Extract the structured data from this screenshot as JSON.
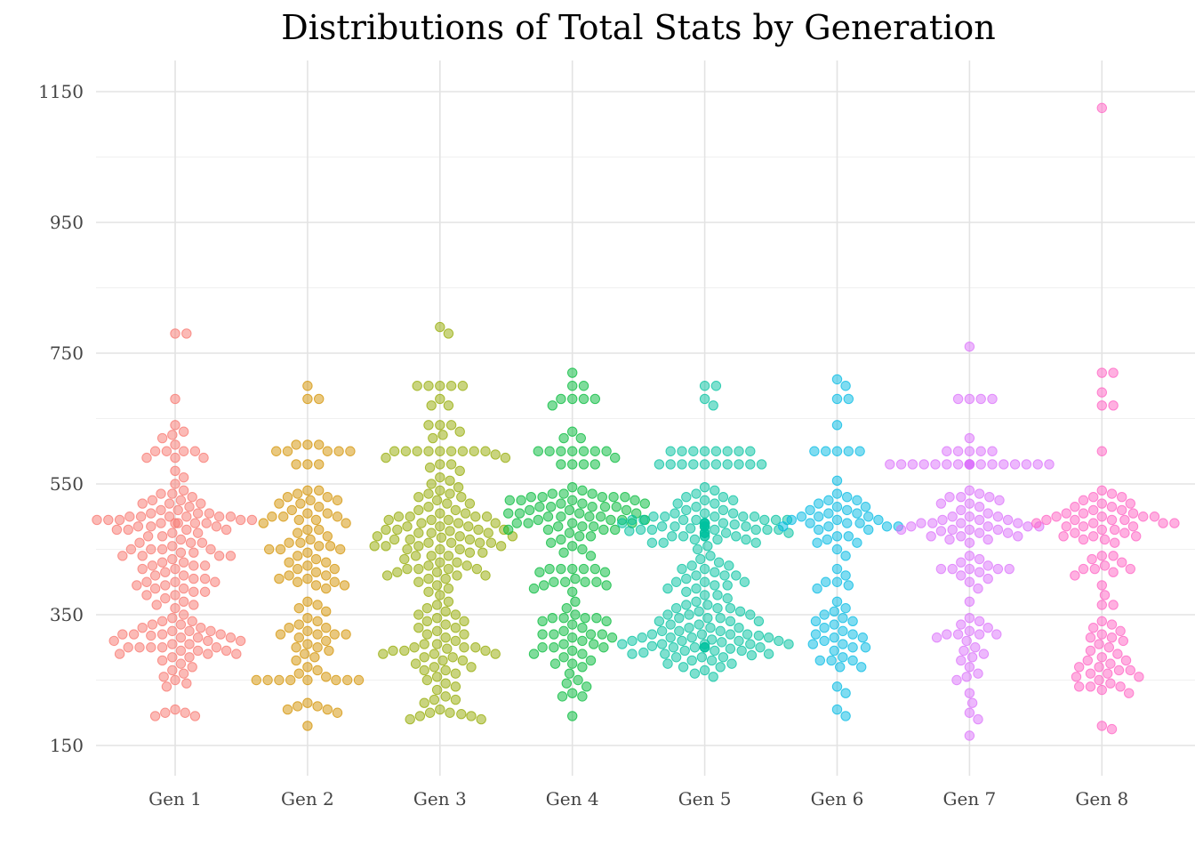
{
  "chart_data": {
    "type": "scatter",
    "subtype": "beeswarm",
    "title": "Distributions of Total Stats by Generation",
    "xlabel": "",
    "ylabel": "",
    "ylim": [
      100,
      1200
    ],
    "y_ticks": [
      "150",
      "350",
      "550",
      "750",
      "950",
      "1150"
    ],
    "y_tick_values": [
      150,
      350,
      550,
      750,
      950,
      1150
    ],
    "y_minor_values": [
      250,
      450,
      650,
      850,
      1050
    ],
    "categories": [
      "Gen 1",
      "Gen 2",
      "Gen 3",
      "Gen 4",
      "Gen 5",
      "Gen 6",
      "Gen 7",
      "Gen 8"
    ],
    "grid": true,
    "legend": "none",
    "point_opacity": 0.5,
    "series": [
      {
        "color": "#F8766D",
        "values": [
          780,
          780,
          680,
          640,
          630,
          625,
          620,
          610,
          600,
          600,
          600,
          600,
          590,
          590,
          590,
          570,
          560,
          550,
          540,
          535,
          535,
          530,
          525,
          525,
          520,
          520,
          520,
          515,
          510,
          510,
          505,
          505,
          505,
          500,
          500,
          500,
          500,
          500,
          500,
          495,
          495,
          495,
          495,
          495,
          490,
          490,
          490,
          490,
          490,
          485,
          485,
          485,
          480,
          480,
          480,
          480,
          475,
          475,
          470,
          470,
          465,
          460,
          460,
          460,
          455,
          450,
          450,
          450,
          450,
          445,
          445,
          440,
          440,
          440,
          440,
          435,
          430,
          430,
          425,
          425,
          425,
          420,
          420,
          415,
          410,
          410,
          405,
          405,
          400,
          400,
          400,
          395,
          395,
          390,
          390,
          385,
          385,
          380,
          380,
          375,
          370,
          365,
          365,
          360,
          350,
          345,
          340,
          340,
          335,
          335,
          330,
          330,
          325,
          325,
          325,
          320,
          320,
          320,
          320,
          318,
          315,
          315,
          315,
          310,
          310,
          310,
          305,
          305,
          300,
          300,
          300,
          300,
          300,
          295,
          295,
          295,
          290,
          290,
          290,
          285,
          285,
          280,
          275,
          270,
          265,
          260,
          255,
          250,
          245,
          240,
          205,
          200,
          200,
          195,
          195
        ]
      },
      {
        "color": "#D39200",
        "values": [
          700,
          680,
          680,
          610,
          610,
          610,
          600,
          600,
          600,
          600,
          600,
          580,
          580,
          580,
          540,
          540,
          535,
          530,
          530,
          525,
          525,
          520,
          520,
          515,
          510,
          505,
          505,
          500,
          500,
          500,
          495,
          495,
          490,
          490,
          480,
          480,
          475,
          470,
          465,
          460,
          460,
          455,
          455,
          450,
          450,
          450,
          445,
          440,
          435,
          430,
          430,
          425,
          420,
          420,
          415,
          410,
          410,
          405,
          405,
          400,
          400,
          395,
          395,
          390,
          370,
          365,
          360,
          355,
          345,
          340,
          335,
          330,
          330,
          325,
          320,
          320,
          320,
          320,
          315,
          310,
          305,
          300,
          300,
          295,
          290,
          285,
          280,
          270,
          265,
          260,
          255,
          250,
          250,
          250,
          250,
          250,
          250,
          250,
          250,
          215,
          210,
          210,
          205,
          205,
          200,
          180
        ]
      },
      {
        "color": "#93AA00",
        "values": [
          790,
          780,
          700,
          700,
          700,
          700,
          700,
          680,
          670,
          670,
          640,
          640,
          640,
          630,
          625,
          620,
          600,
          600,
          600,
          600,
          600,
          600,
          600,
          600,
          600,
          595,
          590,
          590,
          580,
          580,
          575,
          570,
          560,
          555,
          550,
          545,
          540,
          535,
          535,
          530,
          530,
          525,
          520,
          520,
          515,
          510,
          510,
          505,
          505,
          500,
          500,
          500,
          500,
          495,
          495,
          495,
          490,
          490,
          490,
          485,
          485,
          485,
          480,
          480,
          480,
          480,
          478,
          475,
          475,
          475,
          470,
          470,
          470,
          468,
          465,
          465,
          465,
          460,
          460,
          460,
          460,
          455,
          455,
          455,
          455,
          450,
          450,
          450,
          445,
          445,
          440,
          440,
          440,
          435,
          430,
          430,
          425,
          425,
          420,
          420,
          420,
          420,
          415,
          415,
          410,
          410,
          410,
          405,
          405,
          400,
          395,
          390,
          385,
          380,
          370,
          365,
          360,
          355,
          350,
          350,
          345,
          340,
          340,
          335,
          330,
          330,
          325,
          320,
          320,
          315,
          310,
          305,
          305,
          300,
          300,
          300,
          298,
          295,
          295,
          295,
          290,
          290,
          290,
          285,
          285,
          280,
          280,
          275,
          270,
          270,
          265,
          265,
          260,
          255,
          250,
          245,
          240,
          235,
          225,
          220,
          220,
          215,
          205,
          200,
          200,
          198,
          195,
          195,
          190,
          190
        ]
      },
      {
        "color": "#00BA38",
        "values": [
          720,
          700,
          700,
          680,
          680,
          680,
          680,
          670,
          630,
          620,
          620,
          600,
          600,
          600,
          600,
          600,
          600,
          600,
          590,
          580,
          580,
          580,
          580,
          545,
          540,
          535,
          535,
          535,
          530,
          530,
          530,
          530,
          530,
          525,
          525,
          525,
          525,
          520,
          520,
          520,
          515,
          515,
          515,
          515,
          515,
          510,
          510,
          510,
          505,
          505,
          505,
          505,
          500,
          500,
          500,
          500,
          495,
          495,
          495,
          495,
          490,
          490,
          490,
          490,
          485,
          485,
          485,
          480,
          480,
          480,
          480,
          475,
          470,
          470,
          465,
          460,
          455,
          450,
          445,
          440,
          420,
          420,
          420,
          420,
          420,
          415,
          415,
          405,
          400,
          400,
          400,
          400,
          395,
          395,
          390,
          385,
          370,
          360,
          350,
          345,
          345,
          345,
          345,
          340,
          340,
          335,
          330,
          325,
          320,
          320,
          320,
          320,
          315,
          315,
          310,
          305,
          305,
          300,
          300,
          300,
          295,
          290,
          290,
          285,
          280,
          275,
          275,
          270,
          260,
          250,
          245,
          240,
          230,
          225,
          225,
          195
        ]
      },
      {
        "color": "#00C19F",
        "values": [
          700,
          700,
          680,
          670,
          600,
          600,
          600,
          600,
          600,
          600,
          600,
          600,
          580,
          580,
          580,
          580,
          580,
          580,
          580,
          580,
          580,
          580,
          545,
          540,
          535,
          530,
          530,
          525,
          525,
          520,
          520,
          515,
          510,
          510,
          505,
          505,
          505,
          500,
          500,
          500,
          500,
          500,
          495,
          495,
          495,
          495,
          495,
          495,
          495,
          490,
          490,
          490,
          490,
          490,
          490,
          488,
          485,
          485,
          485,
          485,
          485,
          485,
          485,
          482,
          480,
          480,
          480,
          480,
          480,
          480,
          478,
          475,
          475,
          475,
          475,
          475,
          470,
          470,
          470,
          470,
          470,
          465,
          465,
          465,
          460,
          460,
          460,
          455,
          450,
          440,
          435,
          430,
          425,
          425,
          420,
          420,
          415,
          410,
          410,
          410,
          405,
          400,
          400,
          400,
          395,
          395,
          390,
          390,
          385,
          380,
          380,
          375,
          370,
          365,
          365,
          360,
          360,
          360,
          355,
          355,
          350,
          350,
          350,
          345,
          345,
          345,
          340,
          340,
          340,
          335,
          335,
          330,
          330,
          330,
          325,
          325,
          325,
          320,
          320,
          320,
          320,
          318,
          315,
          315,
          315,
          315,
          312,
          310,
          310,
          310,
          310,
          308,
          305,
          305,
          305,
          305,
          305,
          302,
          300,
          300,
          300,
          300,
          300,
          300,
          298,
          295,
          295,
          295,
          292,
          290,
          290,
          290,
          288,
          285,
          285,
          285,
          280,
          280,
          275,
          275,
          270,
          270,
          265,
          260,
          255
        ]
      },
      {
        "color": "#00B9E3",
        "values": [
          710,
          700,
          680,
          680,
          640,
          600,
          600,
          600,
          600,
          600,
          555,
          535,
          530,
          525,
          525,
          520,
          515,
          515,
          510,
          510,
          505,
          505,
          500,
          500,
          500,
          495,
          495,
          495,
          490,
          490,
          490,
          485,
          485,
          485,
          485,
          480,
          480,
          470,
          470,
          465,
          460,
          460,
          450,
          440,
          420,
          410,
          400,
          400,
          395,
          390,
          370,
          360,
          355,
          350,
          345,
          340,
          340,
          335,
          330,
          325,
          320,
          320,
          315,
          315,
          310,
          305,
          305,
          300,
          300,
          295,
          285,
          280,
          280,
          280,
          270,
          270,
          240,
          230,
          205,
          195
        ]
      },
      {
        "color": "#DB72FB",
        "values": [
          760,
          680,
          680,
          680,
          680,
          620,
          600,
          600,
          600,
          600,
          600,
          580,
          580,
          580,
          580,
          580,
          580,
          580,
          580,
          580,
          580,
          580,
          580,
          580,
          580,
          580,
          580,
          580,
          580,
          580,
          540,
          535,
          530,
          530,
          530,
          525,
          520,
          520,
          515,
          510,
          505,
          500,
          500,
          500,
          495,
          495,
          495,
          490,
          490,
          490,
          490,
          485,
          485,
          485,
          485,
          480,
          480,
          480,
          480,
          478,
          475,
          475,
          470,
          470,
          470,
          465,
          465,
          460,
          440,
          435,
          430,
          425,
          420,
          420,
          420,
          420,
          420,
          415,
          410,
          405,
          400,
          390,
          370,
          345,
          340,
          335,
          330,
          325,
          320,
          320,
          320,
          320,
          315,
          310,
          300,
          295,
          290,
          285,
          280,
          270,
          260,
          255,
          250,
          230,
          215,
          200,
          190,
          165
        ]
      },
      {
        "color": "#FF61C3",
        "values": [
          1125,
          720,
          720,
          690,
          670,
          670,
          600,
          540,
          535,
          530,
          530,
          525,
          520,
          520,
          515,
          515,
          510,
          510,
          505,
          505,
          505,
          500,
          500,
          500,
          500,
          495,
          495,
          495,
          495,
          490,
          490,
          490,
          490,
          485,
          485,
          485,
          480,
          480,
          475,
          475,
          470,
          470,
          470,
          465,
          465,
          460,
          440,
          440,
          435,
          430,
          425,
          420,
          420,
          420,
          415,
          410,
          395,
          380,
          365,
          365,
          340,
          335,
          330,
          325,
          320,
          315,
          315,
          310,
          305,
          300,
          295,
          290,
          285,
          280,
          280,
          275,
          270,
          270,
          265,
          265,
          260,
          260,
          255,
          255,
          250,
          245,
          240,
          240,
          240,
          235,
          230,
          180,
          175
        ]
      }
    ]
  }
}
